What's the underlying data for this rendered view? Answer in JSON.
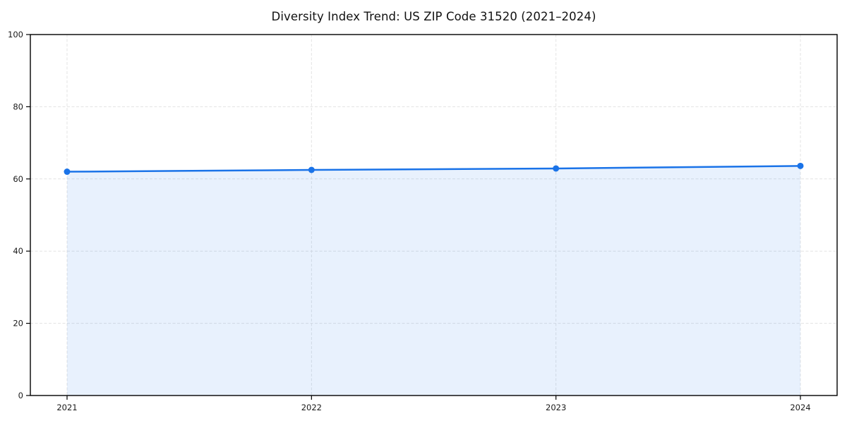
{
  "chart_data": {
    "type": "area",
    "title": "Diversity Index Trend: US ZIP Code 31520 (2021–2024)",
    "x": [
      2021,
      2022,
      2023,
      2024
    ],
    "xticks": [
      "2021",
      "2022",
      "2023",
      "2024"
    ],
    "series": [
      {
        "name": "Diversity Index",
        "values": [
          62.0,
          62.5,
          62.9,
          63.6
        ]
      }
    ],
    "xlabel": "",
    "ylabel": "",
    "ylim": [
      0,
      100
    ],
    "yticks": [
      0,
      20,
      40,
      60,
      80,
      100
    ],
    "grid": true,
    "grid_style": "dashed",
    "legend": "none",
    "colors": {
      "line": "#1a73e8",
      "marker": "#1a73e8",
      "fill": "rgba(26,115,232,0.10)",
      "grid": "#e3e3e3",
      "spine": "#000000",
      "tick_label": "#1a1a1a",
      "title": "#111111",
      "background": "#ffffff"
    }
  }
}
